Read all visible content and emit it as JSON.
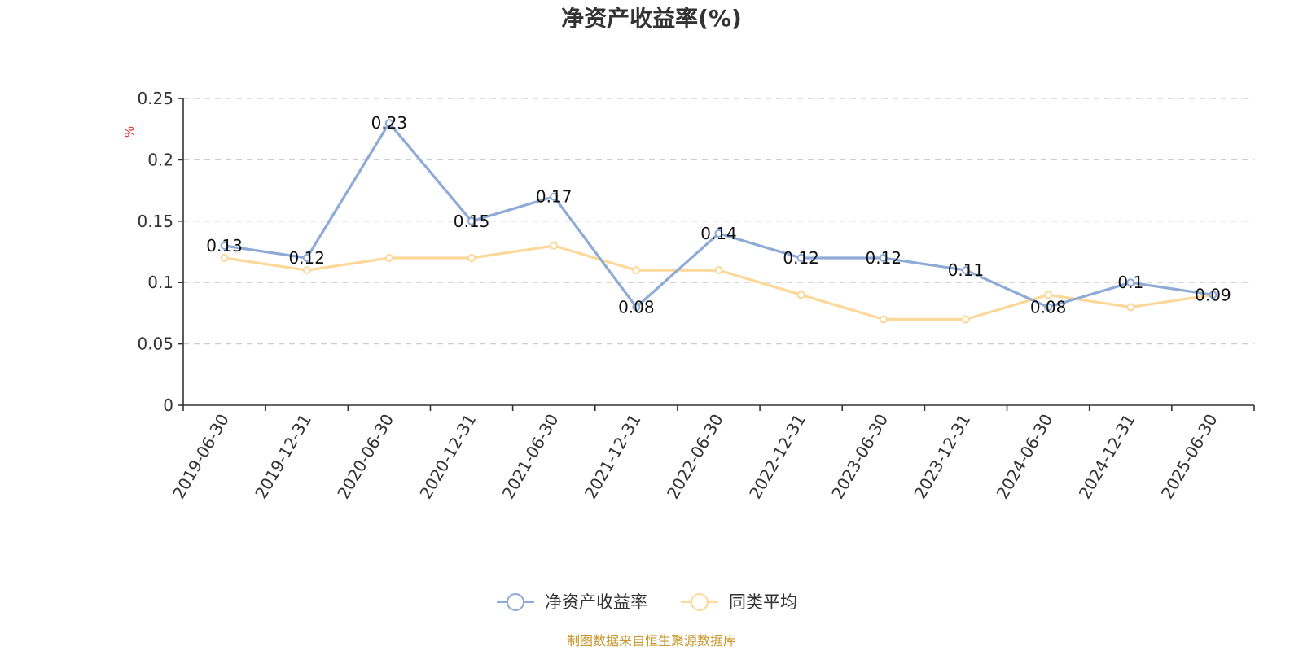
{
  "chart_data": {
    "type": "line",
    "title": "净资产收益率(%)",
    "ylabel": "%",
    "xlabel": "",
    "categories": [
      "2019-06-30",
      "2019-12-31",
      "2020-06-30",
      "2020-12-31",
      "2021-06-30",
      "2021-12-31",
      "2022-06-30",
      "2022-12-31",
      "2023-06-30",
      "2023-12-31",
      "2024-06-30",
      "2024-12-31",
      "2025-06-30"
    ],
    "ylim": [
      0,
      0.25
    ],
    "yticks": [
      0,
      0.05,
      0.1,
      0.15,
      0.2,
      0.25
    ],
    "ytick_labels": [
      "0",
      "0.05",
      "0.1",
      "0.15",
      "0.2",
      "0.25"
    ],
    "grid": true,
    "legend_position": "bottom-center",
    "series": [
      {
        "name": "净资产收益率",
        "color": "#8eaad6",
        "values": [
          0.13,
          0.12,
          0.23,
          0.15,
          0.17,
          0.08,
          0.14,
          0.12,
          0.12,
          0.11,
          0.08,
          0.1,
          0.09
        ],
        "labels": [
          "0.13",
          "0.12",
          "0.23",
          "0.15",
          "0.17",
          "0.08",
          "0.14",
          "0.12",
          "0.12",
          "0.11",
          "0.08",
          "0.1",
          "0.09"
        ]
      },
      {
        "name": "同类平均",
        "color": "#fdd898",
        "values": [
          0.12,
          0.11,
          0.12,
          0.12,
          0.13,
          0.11,
          0.11,
          0.09,
          0.07,
          0.07,
          0.09,
          0.08,
          0.09
        ]
      }
    ]
  },
  "source": "制图数据来自恒生聚源数据库"
}
